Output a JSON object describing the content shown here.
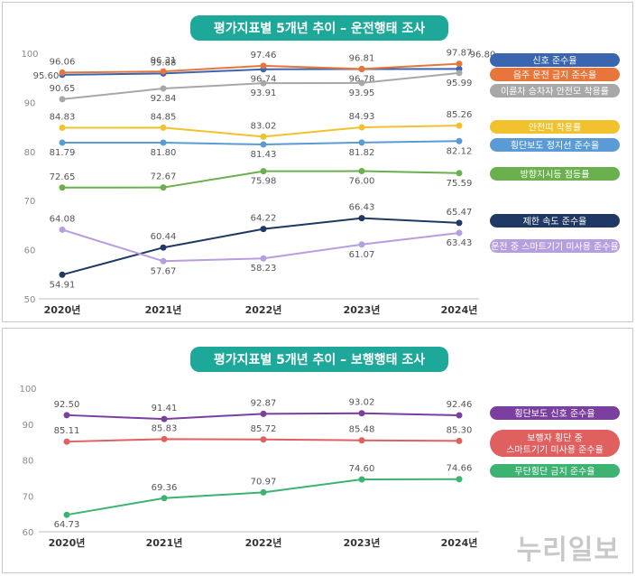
{
  "watermark": "누리일보",
  "chart_data": [
    {
      "type": "line",
      "title": "평가지표별 5개년 추이 – 운전행태 조사",
      "categories": [
        "2020년",
        "2021년",
        "2022년",
        "2023년",
        "2024년"
      ],
      "ylim": [
        50,
        100
      ],
      "yticks": [
        50,
        60,
        70,
        80,
        90,
        100
      ],
      "grid": false,
      "legend_position": "right",
      "series": [
        {
          "name": "신호 준수율",
          "values": [
            95.6,
            95.88,
            96.74,
            96.78,
            96.8
          ],
          "color": "#3a66b0"
        },
        {
          "name": "음주 운전 금지 준수율",
          "values": [
            96.06,
            96.31,
            97.46,
            96.81,
            97.87
          ],
          "color": "#e8763a"
        },
        {
          "name": "이륜차 승차자 안전모 착용률",
          "values": [
            90.65,
            92.84,
            93.91,
            93.95,
            95.99
          ],
          "color": "#a8a8a8"
        },
        {
          "name": "안전띠 착용률",
          "values": [
            84.83,
            84.85,
            83.02,
            84.93,
            85.26
          ],
          "color": "#f2c12e"
        },
        {
          "name": "횡단보도 정지선 준수율",
          "values": [
            81.79,
            81.8,
            81.43,
            81.82,
            82.12
          ],
          "color": "#5b9bd5"
        },
        {
          "name": "방향지시등 점등률",
          "values": [
            72.65,
            72.67,
            75.98,
            76.0,
            75.59
          ],
          "color": "#6ab04c"
        },
        {
          "name": "제한 속도 준수율",
          "values": [
            54.91,
            60.44,
            64.22,
            66.43,
            65.47
          ],
          "color": "#1f3864"
        },
        {
          "name": "운전 중 스마트기기 미사용 준수율",
          "values": [
            64.08,
            57.67,
            58.23,
            61.07,
            63.43
          ],
          "color": "#b69ee0"
        }
      ]
    },
    {
      "type": "line",
      "title": "평가지표별 5개년 추이 – 보행행태 조사",
      "categories": [
        "2020년",
        "2021년",
        "2022년",
        "2023년",
        "2024년"
      ],
      "ylim": [
        60,
        100
      ],
      "yticks": [
        60,
        70,
        80,
        90,
        100
      ],
      "grid": false,
      "legend_position": "right",
      "series": [
        {
          "name": "횡단보도 신호 준수율",
          "values": [
            92.5,
            91.41,
            92.87,
            93.02,
            92.46
          ],
          "color": "#7b3fa0"
        },
        {
          "name": "보행자 횡단 중 스마트기기 미사용 준수율",
          "label_lines": [
            "보행자 횡단 중",
            "스마트기기 미사용 준수율"
          ],
          "values": [
            85.11,
            85.83,
            85.72,
            85.48,
            85.3
          ],
          "color": "#e06060"
        },
        {
          "name": "무단횡단 금지 준수율",
          "values": [
            64.73,
            69.36,
            70.97,
            74.6,
            74.66
          ],
          "color": "#3cb371"
        }
      ]
    }
  ]
}
